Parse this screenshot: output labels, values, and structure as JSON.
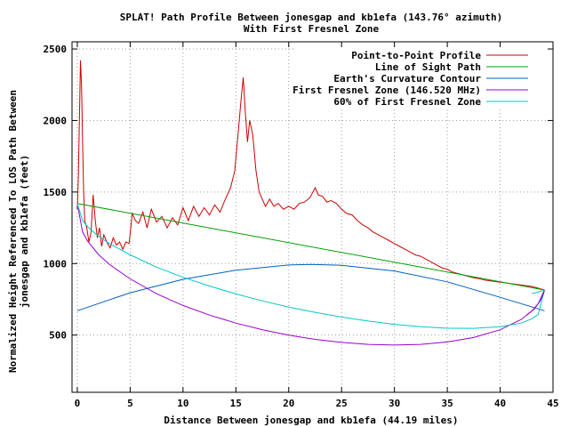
{
  "chart_data": {
    "type": "line",
    "title": "SPLAT! Path Profile Between jonesgap and kb1efa (143.76° azimuth)",
    "subtitle": "With First Fresnel Zone",
    "xlabel": "Distance Between jonesgap and kb1efa (44.19 miles)",
    "ylabel_line1": "Normalized Height Referenced To LOS Path Between",
    "ylabel_line2": "jonesgap and kb1efa (feet)",
    "xlim": [
      -0.5,
      45
    ],
    "ylim": [
      100,
      2550
    ],
    "xticks": [
      0,
      5,
      10,
      15,
      20,
      25,
      30,
      35,
      40,
      45
    ],
    "yticks": [
      500,
      1000,
      1500,
      2000,
      2500
    ],
    "grid": true,
    "legend_position": "top-right",
    "series": [
      {
        "name": "Point-to-Point Profile",
        "color": "#cc0000",
        "x": [
          0.0,
          0.1,
          0.2,
          0.3,
          0.4,
          0.5,
          0.6,
          0.7,
          0.9,
          1.1,
          1.3,
          1.5,
          1.7,
          1.9,
          2.1,
          2.3,
          2.5,
          2.8,
          3.1,
          3.4,
          3.7,
          4.0,
          4.3,
          4.6,
          4.9,
          5.2,
          5.5,
          5.8,
          6.2,
          6.6,
          7.0,
          7.5,
          8.0,
          8.5,
          9.0,
          9.5,
          10.0,
          10.5,
          11.0,
          11.5,
          12.0,
          12.5,
          13.0,
          13.5,
          14.0,
          14.5,
          14.9,
          15.2,
          15.5,
          15.7,
          15.9,
          16.1,
          16.3,
          16.6,
          16.9,
          17.2,
          17.5,
          17.8,
          18.2,
          18.6,
          19.0,
          19.5,
          20.0,
          20.5,
          21.0,
          21.5,
          22.0,
          22.5,
          22.8,
          23.2,
          23.6,
          24.0,
          24.5,
          25.0,
          25.5,
          26.0,
          26.5,
          27.0,
          27.5,
          28.0,
          28.5,
          29.0,
          29.5,
          30.0,
          30.5,
          31.0,
          31.5,
          32.0,
          32.5,
          33.0,
          33.5,
          34.0,
          34.5,
          35.0,
          35.5,
          36.0,
          36.5,
          37.0,
          37.5,
          38.0,
          38.5,
          39.0,
          39.5,
          40.0,
          40.5,
          41.0,
          41.5,
          42.0,
          42.5,
          43.0,
          43.5,
          44.19
        ],
        "y": [
          1380,
          1600,
          2000,
          2420,
          2250,
          1850,
          1500,
          1300,
          1250,
          1150,
          1220,
          1480,
          1300,
          1180,
          1250,
          1120,
          1200,
          1150,
          1110,
          1180,
          1130,
          1150,
          1100,
          1150,
          1140,
          1350,
          1300,
          1280,
          1360,
          1250,
          1380,
          1290,
          1330,
          1250,
          1320,
          1270,
          1390,
          1300,
          1400,
          1330,
          1390,
          1340,
          1410,
          1360,
          1450,
          1530,
          1650,
          1900,
          2150,
          2300,
          2050,
          1850,
          2000,
          1900,
          1650,
          1500,
          1450,
          1400,
          1450,
          1400,
          1420,
          1380,
          1400,
          1380,
          1420,
          1430,
          1460,
          1530,
          1480,
          1470,
          1430,
          1440,
          1420,
          1380,
          1350,
          1340,
          1300,
          1270,
          1250,
          1220,
          1200,
          1180,
          1160,
          1140,
          1120,
          1100,
          1080,
          1060,
          1050,
          1030,
          1010,
          990,
          970,
          960,
          940,
          930,
          920,
          910,
          900,
          895,
          885,
          880,
          875,
          870,
          865,
          860,
          855,
          850,
          845,
          840,
          830,
          815
        ]
      },
      {
        "name": "Line of Sight Path",
        "color": "#00a000",
        "x": [
          0,
          44.19
        ],
        "y": [
          1420,
          815
        ]
      },
      {
        "name": "Earth's Curvature Contour",
        "color": "#0060c0",
        "x": [
          0,
          5,
          10,
          15,
          20,
          22.1,
          25,
          30,
          35,
          40,
          44.19
        ],
        "y": [
          670,
          796,
          890,
          954,
          990,
          994,
          988,
          948,
          872,
          764,
          670
        ]
      },
      {
        "name": "First Fresnel Zone (146.520 MHz)",
        "color": "#9900cc",
        "x": [
          0,
          0.5,
          1,
          2,
          3,
          5,
          7.5,
          10,
          12.5,
          15,
          17.5,
          20,
          22.5,
          25,
          27.5,
          30,
          32.5,
          35,
          37.5,
          40,
          42,
          43,
          43.6,
          44.19
        ],
        "y": [
          1420,
          1220,
          1154,
          1064,
          996,
          893,
          789,
          707,
          640,
          584,
          538,
          500,
          470,
          449,
          435,
          430,
          435,
          452,
          483,
          537,
          609,
          668,
          720,
          815
        ]
      },
      {
        "name": "60% of First Fresnel Zone",
        "color": "#00c8c8",
        "x": [
          0,
          0.5,
          1,
          2,
          3,
          5,
          7.5,
          10,
          12.5,
          15,
          17.5,
          20,
          22.5,
          25,
          27.5,
          30,
          32.5,
          35,
          37.5,
          40,
          42,
          43,
          43.6,
          44.19
        ],
        "y": [
          1420,
          1300,
          1256,
          1191,
          1141,
          1061,
          975,
          904,
          843,
          788,
          739,
          696,
          659,
          626,
          598,
          575,
          558,
          548,
          547,
          558,
          584,
          614,
          645,
          815
        ]
      }
    ],
    "upper_lobes": [
      {
        "color": "#9900cc",
        "x": [
          42.5,
          43.2,
          43.8,
          44.1,
          44.19
        ],
        "y": [
          640,
          680,
          740,
          790,
          815
        ]
      },
      {
        "color": "#00c8c8",
        "x": [
          43.0,
          43.6,
          44.0,
          44.19
        ],
        "y": [
          790,
          800,
          810,
          815
        ]
      }
    ]
  }
}
